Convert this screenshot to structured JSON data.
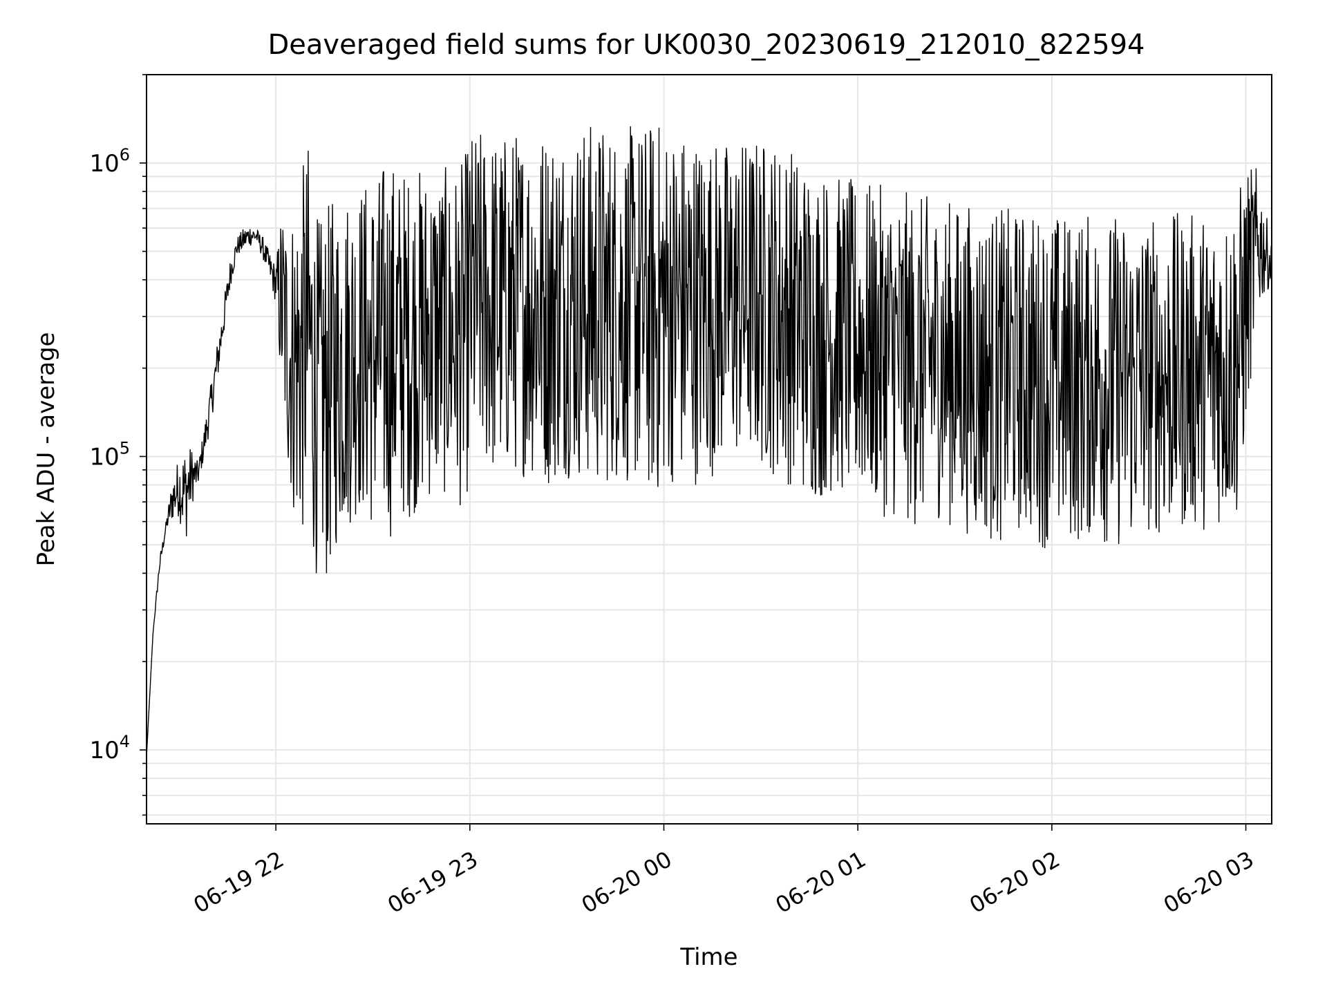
{
  "chart_data": {
    "type": "line",
    "title": "Deaveraged field sums for UK0030_20230619_212010_822594",
    "xlabel": "Time",
    "ylabel": "Peak ADU - average",
    "yscale": "log",
    "ylim": [
      5600,
      2000000
    ],
    "xlim": [
      "2023-06-19 21:20",
      "2023-06-20 03:08"
    ],
    "grid": true,
    "line_color": "#000000",
    "x_ticks": [
      {
        "value": "2023-06-19 22:00",
        "label": "06-19 22"
      },
      {
        "value": "2023-06-19 23:00",
        "label": "06-19 23"
      },
      {
        "value": "2023-06-20 00:00",
        "label": "06-20 00"
      },
      {
        "value": "2023-06-20 01:00",
        "label": "06-20 01"
      },
      {
        "value": "2023-06-20 02:00",
        "label": "06-20 02"
      },
      {
        "value": "2023-06-20 03:00",
        "label": "06-20 03"
      }
    ],
    "y_ticks": [
      {
        "value": 10000,
        "base": "10",
        "exp": "4"
      },
      {
        "value": 100000,
        "base": "10",
        "exp": "5"
      },
      {
        "value": 1000000,
        "base": "10",
        "exp": "6"
      }
    ],
    "series": [
      {
        "x": [
          "2023-06-19 21:20",
          "2023-06-19 21:22",
          "2023-06-19 21:24",
          "2023-06-19 21:26",
          "2023-06-19 21:28",
          "2023-06-19 21:30",
          "2023-06-19 21:32",
          "2023-06-19 21:34",
          "2023-06-19 21:36",
          "2023-06-19 21:38",
          "2023-06-19 21:40",
          "2023-06-19 21:42",
          "2023-06-19 21:44",
          "2023-06-19 21:46",
          "2023-06-19 21:48",
          "2023-06-19 21:50",
          "2023-06-19 21:52",
          "2023-06-19 21:54",
          "2023-06-19 21:56",
          "2023-06-19 21:58",
          "2023-06-19 22:00",
          "2023-06-19 22:02",
          "2023-06-19 22:04",
          "2023-06-19 22:06",
          "2023-06-19 22:08",
          "2023-06-19 22:10",
          "2023-06-19 22:12",
          "2023-06-19 22:14",
          "2023-06-19 22:16",
          "2023-06-19 22:18",
          "2023-06-19 22:20",
          "2023-06-19 22:22",
          "2023-06-19 22:24",
          "2023-06-19 22:26",
          "2023-06-19 22:28",
          "2023-06-19 22:30",
          "2023-06-19 22:32",
          "2023-06-19 22:34",
          "2023-06-19 22:36",
          "2023-06-19 22:38",
          "2023-06-19 22:40",
          "2023-06-19 22:42",
          "2023-06-19 22:44",
          "2023-06-19 22:46",
          "2023-06-19 22:48",
          "2023-06-19 22:50",
          "2023-06-19 22:52",
          "2023-06-19 22:54",
          "2023-06-19 22:56",
          "2023-06-19 22:58",
          "2023-06-19 23:00",
          "2023-06-19 23:02",
          "2023-06-19 23:04",
          "2023-06-19 23:06",
          "2023-06-19 23:08",
          "2023-06-19 23:10",
          "2023-06-19 23:12",
          "2023-06-19 23:14",
          "2023-06-19 23:16",
          "2023-06-19 23:18",
          "2023-06-19 23:20",
          "2023-06-19 23:22",
          "2023-06-19 23:24",
          "2023-06-19 23:26",
          "2023-06-19 23:28",
          "2023-06-19 23:30",
          "2023-06-19 23:32",
          "2023-06-19 23:34",
          "2023-06-19 23:36",
          "2023-06-19 23:38",
          "2023-06-19 23:40",
          "2023-06-19 23:42",
          "2023-06-19 23:44",
          "2023-06-19 23:46",
          "2023-06-19 23:48",
          "2023-06-19 23:50",
          "2023-06-19 23:52",
          "2023-06-19 23:54",
          "2023-06-19 23:56",
          "2023-06-19 23:58",
          "2023-06-20 00:00",
          "2023-06-20 00:02",
          "2023-06-20 00:04",
          "2023-06-20 00:06",
          "2023-06-20 00:08",
          "2023-06-20 00:10",
          "2023-06-20 00:12",
          "2023-06-20 00:14",
          "2023-06-20 00:16",
          "2023-06-20 00:18",
          "2023-06-20 00:20",
          "2023-06-20 00:22",
          "2023-06-20 00:24",
          "2023-06-20 00:26",
          "2023-06-20 00:28",
          "2023-06-20 00:30",
          "2023-06-20 00:32",
          "2023-06-20 00:34",
          "2023-06-20 00:36",
          "2023-06-20 00:38",
          "2023-06-20 00:40",
          "2023-06-20 00:42",
          "2023-06-20 00:44",
          "2023-06-20 00:46",
          "2023-06-20 00:48",
          "2023-06-20 00:50",
          "2023-06-20 00:52",
          "2023-06-20 00:54",
          "2023-06-20 00:56",
          "2023-06-20 00:58",
          "2023-06-20 01:00",
          "2023-06-20 01:02",
          "2023-06-20 01:04",
          "2023-06-20 01:06",
          "2023-06-20 01:08",
          "2023-06-20 01:10",
          "2023-06-20 01:12",
          "2023-06-20 01:14",
          "2023-06-20 01:16",
          "2023-06-20 01:18",
          "2023-06-20 01:20",
          "2023-06-20 01:22",
          "2023-06-20 01:24",
          "2023-06-20 01:26",
          "2023-06-20 01:28",
          "2023-06-20 01:30",
          "2023-06-20 01:32",
          "2023-06-20 01:34",
          "2023-06-20 01:36",
          "2023-06-20 01:38",
          "2023-06-20 01:40",
          "2023-06-20 01:42",
          "2023-06-20 01:44",
          "2023-06-20 01:46",
          "2023-06-20 01:48",
          "2023-06-20 01:50",
          "2023-06-20 01:52",
          "2023-06-20 01:54",
          "2023-06-20 01:56",
          "2023-06-20 01:58",
          "2023-06-20 02:00",
          "2023-06-20 02:02",
          "2023-06-20 02:04",
          "2023-06-20 02:06",
          "2023-06-20 02:08",
          "2023-06-20 02:10",
          "2023-06-20 02:12",
          "2023-06-20 02:14",
          "2023-06-20 02:16",
          "2023-06-20 02:18",
          "2023-06-20 02:20",
          "2023-06-20 02:22",
          "2023-06-20 02:24",
          "2023-06-20 02:26",
          "2023-06-20 02:28",
          "2023-06-20 02:30",
          "2023-06-20 02:32",
          "2023-06-20 02:34",
          "2023-06-20 02:36",
          "2023-06-20 02:38",
          "2023-06-20 02:40",
          "2023-06-20 02:42",
          "2023-06-20 02:44",
          "2023-06-20 02:46",
          "2023-06-20 02:48",
          "2023-06-20 02:50",
          "2023-06-20 02:52",
          "2023-06-20 02:54",
          "2023-06-20 02:56",
          "2023-06-20 02:58",
          "2023-06-20 03:00",
          "2023-06-20 03:02",
          "2023-06-20 03:04",
          "2023-06-20 03:06",
          "2023-06-20 03:08"
        ],
        "low": [
          9500,
          25000,
          40000,
          55000,
          60000,
          62000,
          50000,
          68000,
          80000,
          100000,
          130000,
          180000,
          260000,
          380000,
          480000,
          500000,
          520000,
          530000,
          470000,
          400000,
          330000,
          130000,
          80000,
          55000,
          50000,
          60000,
          40000,
          38000,
          36000,
          45000,
          52000,
          55000,
          60000,
          62000,
          58000,
          55000,
          56000,
          53000,
          52000,
          58000,
          60000,
          62000,
          65000,
          68000,
          70000,
          72000,
          72000,
          70000,
          68000,
          65000,
          80000,
          90000,
          88000,
          85000,
          80000,
          82000,
          84000,
          86000,
          85000,
          84000,
          83000,
          80000,
          78000,
          80000,
          82000,
          84000,
          84000,
          82000,
          80000,
          78000,
          76000,
          78000,
          80000,
          82000,
          80000,
          78000,
          76000,
          74000,
          72000,
          70000,
          78000,
          80000,
          80000,
          78000,
          76000,
          80000,
          82000,
          84000,
          86000,
          90000,
          92000,
          95000,
          96000,
          94000,
          92000,
          90000,
          88000,
          85000,
          82000,
          80000,
          78000,
          75000,
          72000,
          70000,
          70000,
          72000,
          74000,
          73000,
          72000,
          70000,
          70000,
          68000,
          66000,
          64000,
          62000,
          62000,
          60000,
          58000,
          58000,
          56000,
          58000,
          60000,
          62000,
          60000,
          58000,
          56000,
          55000,
          54000,
          52000,
          52000,
          52000,
          50000,
          50000,
          52000,
          54000,
          54000,
          53000,
          52000,
          50000,
          48000,
          48000,
          48000,
          50000,
          50000,
          50000,
          50000,
          52000,
          52000,
          50000,
          48000,
          48000,
          48000,
          50000,
          52000,
          52000,
          54000,
          54000,
          52000,
          52000,
          54000,
          55000,
          55000,
          56000,
          56000,
          56000,
          56000,
          58000,
          58000,
          60000,
          60000,
          120000,
          200000,
          300000,
          360000,
          380000
        ],
        "high": [
          9500,
          25000,
          45000,
          60000,
          85000,
          100000,
          110000,
          108000,
          95000,
          130000,
          180000,
          250000,
          350000,
          480000,
          560000,
          600000,
          620000,
          600000,
          560000,
          500000,
          450000,
          780000,
          620000,
          800000,
          950000,
          1200000,
          700000,
          650000,
          720000,
          780000,
          800000,
          850000,
          870000,
          880000,
          900000,
          920000,
          950000,
          1100000,
          1050000,
          1000000,
          980000,
          960000,
          980000,
          1000000,
          1020000,
          1000000,
          980000,
          950000,
          1000000,
          1020000,
          1300000,
          1320000,
          1310000,
          1300000,
          1290000,
          1280000,
          1300000,
          1320000,
          1330000,
          1340000,
          1350000,
          1360000,
          1380000,
          1400000,
          1390000,
          1380000,
          1370000,
          1380000,
          1400000,
          1420000,
          1420000,
          1400000,
          1380000,
          1360000,
          1340000,
          1350000,
          1370000,
          1390000,
          1420000,
          1440000,
          1400000,
          1380000,
          1360000,
          1340000,
          1320000,
          1300000,
          1280000,
          1260000,
          1240000,
          1220000,
          1220000,
          1230000,
          1240000,
          1250000,
          1260000,
          1250000,
          1240000,
          1230000,
          1220000,
          1200000,
          1150000,
          1100000,
          1050000,
          1020000,
          1000000,
          960000,
          940000,
          920000,
          900000,
          890000,
          880000,
          870000,
          860000,
          850000,
          840000,
          830000,
          820000,
          810000,
          800000,
          790000,
          780000,
          780000,
          770000,
          760000,
          760000,
          750000,
          740000,
          740000,
          730000,
          730000,
          720000,
          720000,
          710000,
          710000,
          700000,
          700000,
          700000,
          700000,
          690000,
          690000,
          690000,
          690000,
          680000,
          680000,
          680000,
          680000,
          680000,
          680000,
          680000,
          680000,
          680000,
          680000,
          670000,
          670000,
          670000,
          670000,
          670000,
          670000,
          670000,
          680000,
          680000,
          680000,
          680000,
          680000,
          680000,
          690000,
          700000,
          720000,
          780000,
          850000,
          950000,
          1000000,
          950000,
          700000,
          520000
        ]
      }
    ]
  }
}
